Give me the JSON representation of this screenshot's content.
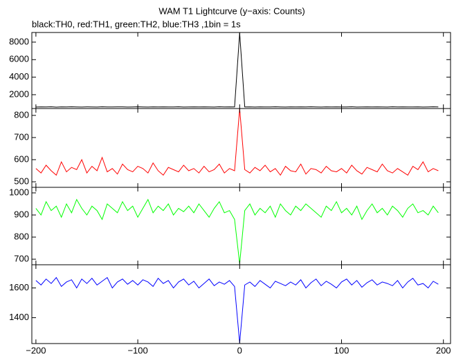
{
  "chart_data": [
    {
      "type": "line",
      "title": "WAM T1 Lightcurve (y−axis: Counts)",
      "subtitle": "black:TH0, red:TH1, green:TH2, blue:TH3 ,1bin = 1s",
      "x": [
        -200,
        -195,
        -190,
        -185,
        -180,
        -175,
        -170,
        -165,
        -160,
        -155,
        -150,
        -145,
        -140,
        -135,
        -130,
        -125,
        -120,
        -115,
        -110,
        -105,
        -100,
        -95,
        -90,
        -85,
        -80,
        -75,
        -70,
        -65,
        -60,
        -55,
        -50,
        -45,
        -40,
        -35,
        -30,
        -25,
        -20,
        -15,
        -10,
        -5,
        0,
        5,
        10,
        15,
        20,
        25,
        30,
        35,
        40,
        45,
        50,
        55,
        60,
        65,
        70,
        75,
        80,
        85,
        90,
        95,
        100,
        105,
        110,
        115,
        120,
        125,
        130,
        135,
        140,
        145,
        150,
        155,
        160,
        165,
        170,
        175,
        180,
        185,
        190,
        195
      ],
      "series": [
        {
          "name": "TH0",
          "color": "#000000",
          "values": [
            590,
            610,
            600,
            620,
            580,
            605,
            595,
            615,
            600,
            590,
            610,
            600,
            585,
            620,
            600,
            595,
            605,
            610,
            590,
            600,
            615,
            600,
            590,
            605,
            600,
            610,
            595,
            600,
            620,
            590,
            600,
            605,
            595,
            610,
            600,
            590,
            615,
            600,
            605,
            595,
            9050,
            600,
            610,
            590,
            605,
            600,
            595,
            615,
            600,
            590,
            610,
            600,
            605,
            595,
            620,
            600,
            590,
            605,
            600,
            610,
            595,
            600,
            615,
            590,
            600,
            605,
            595,
            610,
            600,
            590,
            620,
            600,
            605,
            595,
            600,
            610,
            590,
            600,
            615,
            600
          ]
        }
      ],
      "xlim": [
        -204,
        207
      ],
      "ylim": [
        420,
        9100
      ],
      "yticks": [
        2000,
        4000,
        6000,
        8000
      ]
    },
    {
      "type": "line",
      "x": [
        -200,
        -195,
        -190,
        -185,
        -180,
        -175,
        -170,
        -165,
        -160,
        -155,
        -150,
        -145,
        -140,
        -135,
        -130,
        -125,
        -120,
        -115,
        -110,
        -105,
        -100,
        -95,
        -90,
        -85,
        -80,
        -75,
        -70,
        -65,
        -60,
        -55,
        -50,
        -45,
        -40,
        -35,
        -30,
        -25,
        -20,
        -15,
        -10,
        -5,
        0,
        5,
        10,
        15,
        20,
        25,
        30,
        35,
        40,
        45,
        50,
        55,
        60,
        65,
        70,
        75,
        80,
        85,
        90,
        95,
        100,
        105,
        110,
        115,
        120,
        125,
        130,
        135,
        140,
        145,
        150,
        155,
        160,
        165,
        170,
        175,
        180,
        185,
        190,
        195
      ],
      "series": [
        {
          "name": "TH1",
          "color": "#ff0000",
          "values": [
            560,
            540,
            575,
            550,
            530,
            590,
            545,
            565,
            555,
            600,
            540,
            570,
            550,
            610,
            545,
            560,
            535,
            580,
            555,
            545,
            570,
            560,
            540,
            585,
            550,
            530,
            565,
            555,
            545,
            575,
            550,
            560,
            540,
            570,
            545,
            555,
            580,
            540,
            560,
            550,
            830,
            555,
            540,
            565,
            550,
            575,
            545,
            560,
            530,
            570,
            550,
            545,
            580,
            535,
            560,
            555,
            540,
            570,
            550,
            545,
            560,
            540,
            575,
            550,
            535,
            565,
            555,
            545,
            580,
            550,
            540,
            560,
            545,
            530,
            570,
            555,
            590,
            545,
            560,
            550
          ]
        }
      ],
      "xlim": [
        -204,
        207
      ],
      "ylim": [
        475,
        831
      ],
      "yticks": [
        500,
        600,
        700,
        800
      ]
    },
    {
      "type": "line",
      "x": [
        -200,
        -195,
        -190,
        -185,
        -180,
        -175,
        -170,
        -165,
        -160,
        -155,
        -150,
        -145,
        -140,
        -135,
        -130,
        -125,
        -120,
        -115,
        -110,
        -105,
        -100,
        -95,
        -90,
        -85,
        -80,
        -75,
        -70,
        -65,
        -60,
        -55,
        -50,
        -45,
        -40,
        -35,
        -30,
        -25,
        -20,
        -15,
        -10,
        -5,
        0,
        5,
        10,
        15,
        20,
        25,
        30,
        35,
        40,
        45,
        50,
        55,
        60,
        65,
        70,
        75,
        80,
        85,
        90,
        95,
        100,
        105,
        110,
        115,
        120,
        125,
        130,
        135,
        140,
        145,
        150,
        155,
        160,
        165,
        170,
        175,
        180,
        185,
        190,
        195
      ],
      "series": [
        {
          "name": "TH2",
          "color": "#00ff00",
          "values": [
            930,
            900,
            960,
            920,
            940,
            890,
            950,
            910,
            970,
            930,
            900,
            940,
            920,
            880,
            950,
            930,
            910,
            960,
            920,
            940,
            890,
            930,
            970,
            910,
            940,
            920,
            950,
            900,
            930,
            915,
            940,
            910,
            950,
            920,
            890,
            930,
            960,
            910,
            920,
            880,
            680,
            920,
            950,
            900,
            930,
            910,
            940,
            890,
            950,
            920,
            900,
            940,
            920,
            950,
            930,
            910,
            890,
            940,
            920,
            960,
            910,
            930,
            900,
            940,
            880,
            920,
            950,
            910,
            930,
            900,
            940,
            920,
            890,
            930,
            950,
            910,
            920,
            900,
            940,
            910
          ]
        }
      ],
      "xlim": [
        -204,
        207
      ],
      "ylim": [
        675,
        1025
      ],
      "yticks": [
        700,
        800,
        900,
        1000
      ]
    },
    {
      "type": "line",
      "x": [
        -200,
        -195,
        -190,
        -185,
        -180,
        -175,
        -170,
        -165,
        -160,
        -155,
        -150,
        -145,
        -140,
        -135,
        -130,
        -125,
        -120,
        -115,
        -110,
        -105,
        -100,
        -95,
        -90,
        -85,
        -80,
        -75,
        -70,
        -65,
        -60,
        -55,
        -50,
        -45,
        -40,
        -35,
        -30,
        -25,
        -20,
        -15,
        -10,
        -5,
        0,
        5,
        10,
        15,
        20,
        25,
        30,
        35,
        40,
        45,
        50,
        55,
        60,
        65,
        70,
        75,
        80,
        85,
        90,
        95,
        100,
        105,
        110,
        115,
        120,
        125,
        130,
        135,
        140,
        145,
        150,
        155,
        160,
        165,
        170,
        175,
        180,
        185,
        190,
        195
      ],
      "series": [
        {
          "name": "TH3",
          "color": "#0000ff",
          "values": [
            1650,
            1620,
            1660,
            1630,
            1670,
            1610,
            1640,
            1655,
            1600,
            1660,
            1630,
            1665,
            1620,
            1645,
            1670,
            1600,
            1640,
            1660,
            1625,
            1650,
            1620,
            1655,
            1640,
            1610,
            1665,
            1630,
            1650,
            1600,
            1640,
            1660,
            1620,
            1645,
            1600,
            1630,
            1660,
            1615,
            1640,
            1625,
            1650,
            1610,
            1230,
            1620,
            1640,
            1610,
            1650,
            1625,
            1600,
            1645,
            1630,
            1615,
            1640,
            1620,
            1655,
            1600,
            1635,
            1660,
            1615,
            1645,
            1625,
            1600,
            1640,
            1660,
            1620,
            1650,
            1605,
            1635,
            1655,
            1620,
            1640,
            1630,
            1615,
            1650,
            1600,
            1640,
            1665,
            1620,
            1630,
            1600,
            1645,
            1625
          ]
        }
      ],
      "xlim": [
        -204,
        207
      ],
      "ylim": [
        1226,
        1756
      ],
      "yticks": [
        1400,
        1600
      ],
      "xticks": [
        {
          "value": -200,
          "label": "−200"
        },
        {
          "value": -100,
          "label": "−100"
        },
        0,
        100,
        200
      ]
    }
  ]
}
